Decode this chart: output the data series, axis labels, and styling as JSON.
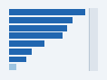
{
  "values": [
    96,
    80,
    73,
    67,
    44,
    28,
    22,
    9
  ],
  "bar_colors": [
    "#2166b0",
    "#2166b0",
    "#2166b0",
    "#2166b0",
    "#2166b0",
    "#2166b0",
    "#2166b0",
    "#9ec4e0"
  ],
  "background_color": "#f0f4f8",
  "plot_bg_color": "#f0f4f8",
  "right_panel_color": "#dde4ec",
  "bar_height": 0.78,
  "xlim": [
    0,
    112
  ]
}
